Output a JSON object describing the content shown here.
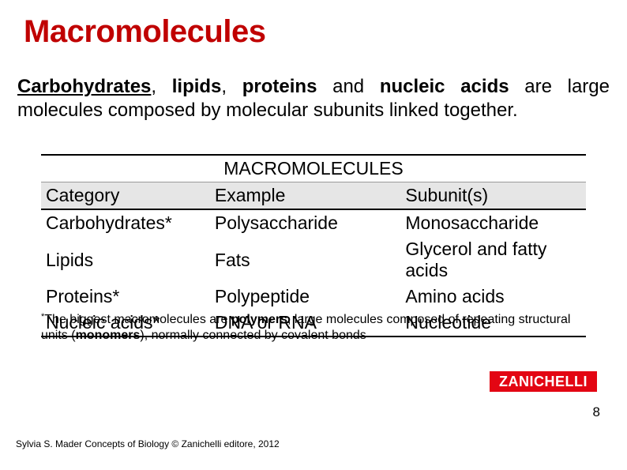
{
  "title_color": "#c00000",
  "title": "Macromolecules",
  "intro_bold_parts": [
    "Carbohydrates",
    "lipids",
    "proteins",
    "nucleic acids"
  ],
  "intro_plain": " are large molecules composed by molecular subunits linked together.",
  "table": {
    "caption": "MACROMOLECULES",
    "columns": [
      "Category",
      "Example",
      "Subunit(s)"
    ],
    "col_widths": [
      "31%",
      "35%",
      "34%"
    ],
    "header_bg": "#e6e6e6",
    "border_color": "#000000",
    "rows": [
      [
        "Carbohydrates*",
        "Polysaccharide",
        "Monosaccharide"
      ],
      [
        "Lipids",
        "Fats",
        "Glycerol and fatty acids"
      ],
      [
        "Proteins*",
        "Polypeptide",
        "Amino acids"
      ],
      [
        "Nucleic acids*",
        "DNA or RNA",
        "Nucleotide"
      ]
    ]
  },
  "footnote_asterisk": "*",
  "footnote_pre": "The biggest macromolecules are ",
  "footnote_bold1": "polymers",
  "footnote_mid": ", large molecules composed of repeating structural units (",
  "footnote_bold2": "monomers",
  "footnote_post": "), normally connected by covalent bonds",
  "logo_text": "ZANICHELLI",
  "logo_bg": "#e30613",
  "logo_fg": "#ffffff",
  "page_number": "8",
  "credit": "Sylvia S. Mader Concepts of Biology © Zanichelli editore, 2012"
}
